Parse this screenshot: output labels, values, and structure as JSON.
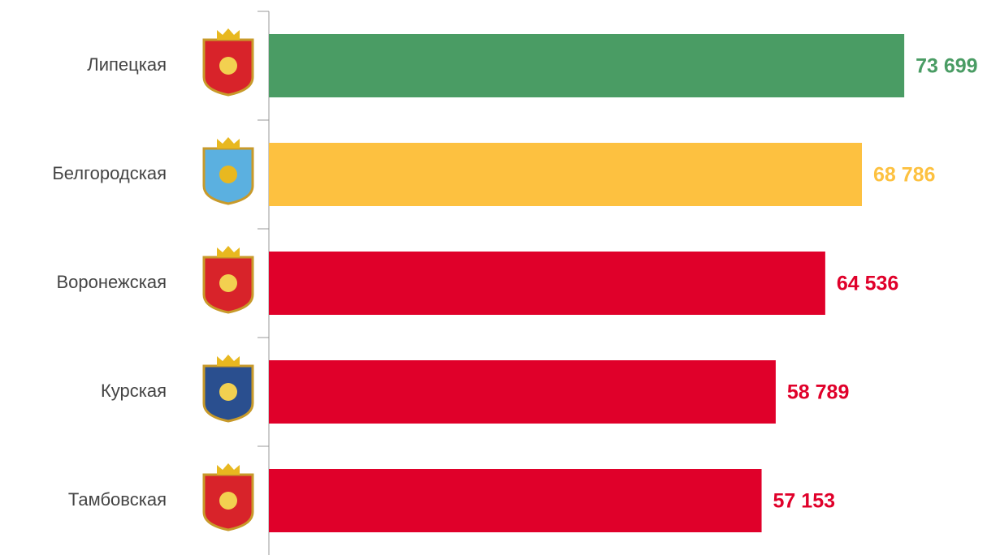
{
  "chart_data": {
    "type": "hbar",
    "categories": [
      "Липецкая",
      "Белгородская",
      "Воронежская",
      "Курская",
      "Тамбовская"
    ],
    "values": [
      73699,
      68786,
      64536,
      58789,
      57153
    ],
    "value_labels": [
      "73 699",
      "68 786",
      "64 536",
      "58 789",
      "57 153"
    ],
    "colors": [
      "#4a9c64",
      "#fdc140",
      "#e0002a",
      "#e0002a",
      "#e0002a"
    ],
    "xlim": [
      0,
      80000
    ]
  }
}
